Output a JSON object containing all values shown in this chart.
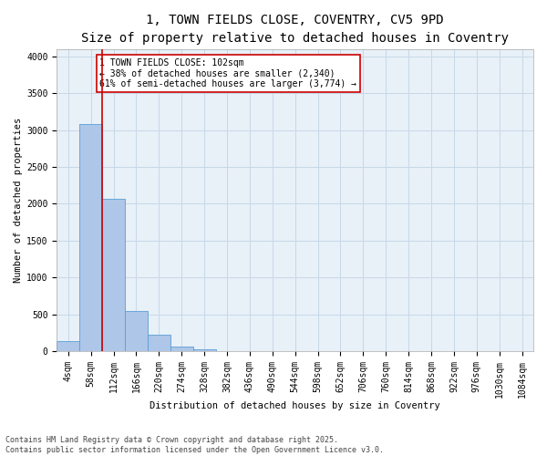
{
  "title_line1": "1, TOWN FIELDS CLOSE, COVENTRY, CV5 9PD",
  "title_line2": "Size of property relative to detached houses in Coventry",
  "xlabel": "Distribution of detached houses by size in Coventry",
  "ylabel": "Number of detached properties",
  "categories": [
    "4sqm",
    "58sqm",
    "112sqm",
    "166sqm",
    "220sqm",
    "274sqm",
    "328sqm",
    "382sqm",
    "436sqm",
    "490sqm",
    "544sqm",
    "598sqm",
    "652sqm",
    "706sqm",
    "760sqm",
    "814sqm",
    "868sqm",
    "922sqm",
    "976sqm",
    "1030sqm",
    "1084sqm"
  ],
  "values": [
    130,
    3080,
    2070,
    540,
    220,
    65,
    20,
    0,
    0,
    0,
    0,
    0,
    0,
    0,
    0,
    0,
    0,
    0,
    0,
    0,
    0
  ],
  "bar_color": "#aec6e8",
  "bar_edge_color": "#5a9fd4",
  "vline_color": "#cc0000",
  "annotation_text": "1 TOWN FIELDS CLOSE: 102sqm\n← 38% of detached houses are smaller (2,340)\n61% of semi-detached houses are larger (3,774) →",
  "annotation_box_color": "#ffffff",
  "annotation_box_edge": "#cc0000",
  "ylim": [
    0,
    4100
  ],
  "yticks": [
    0,
    500,
    1000,
    1500,
    2000,
    2500,
    3000,
    3500,
    4000
  ],
  "grid_color": "#c8d8e8",
  "background_color": "#e8f0f8",
  "footer_text": "Contains HM Land Registry data © Crown copyright and database right 2025.\nContains public sector information licensed under the Open Government Licence v3.0.",
  "title_fontsize": 10,
  "subtitle_fontsize": 9,
  "axis_fontsize": 7.5,
  "tick_fontsize": 7,
  "annot_fontsize": 7
}
